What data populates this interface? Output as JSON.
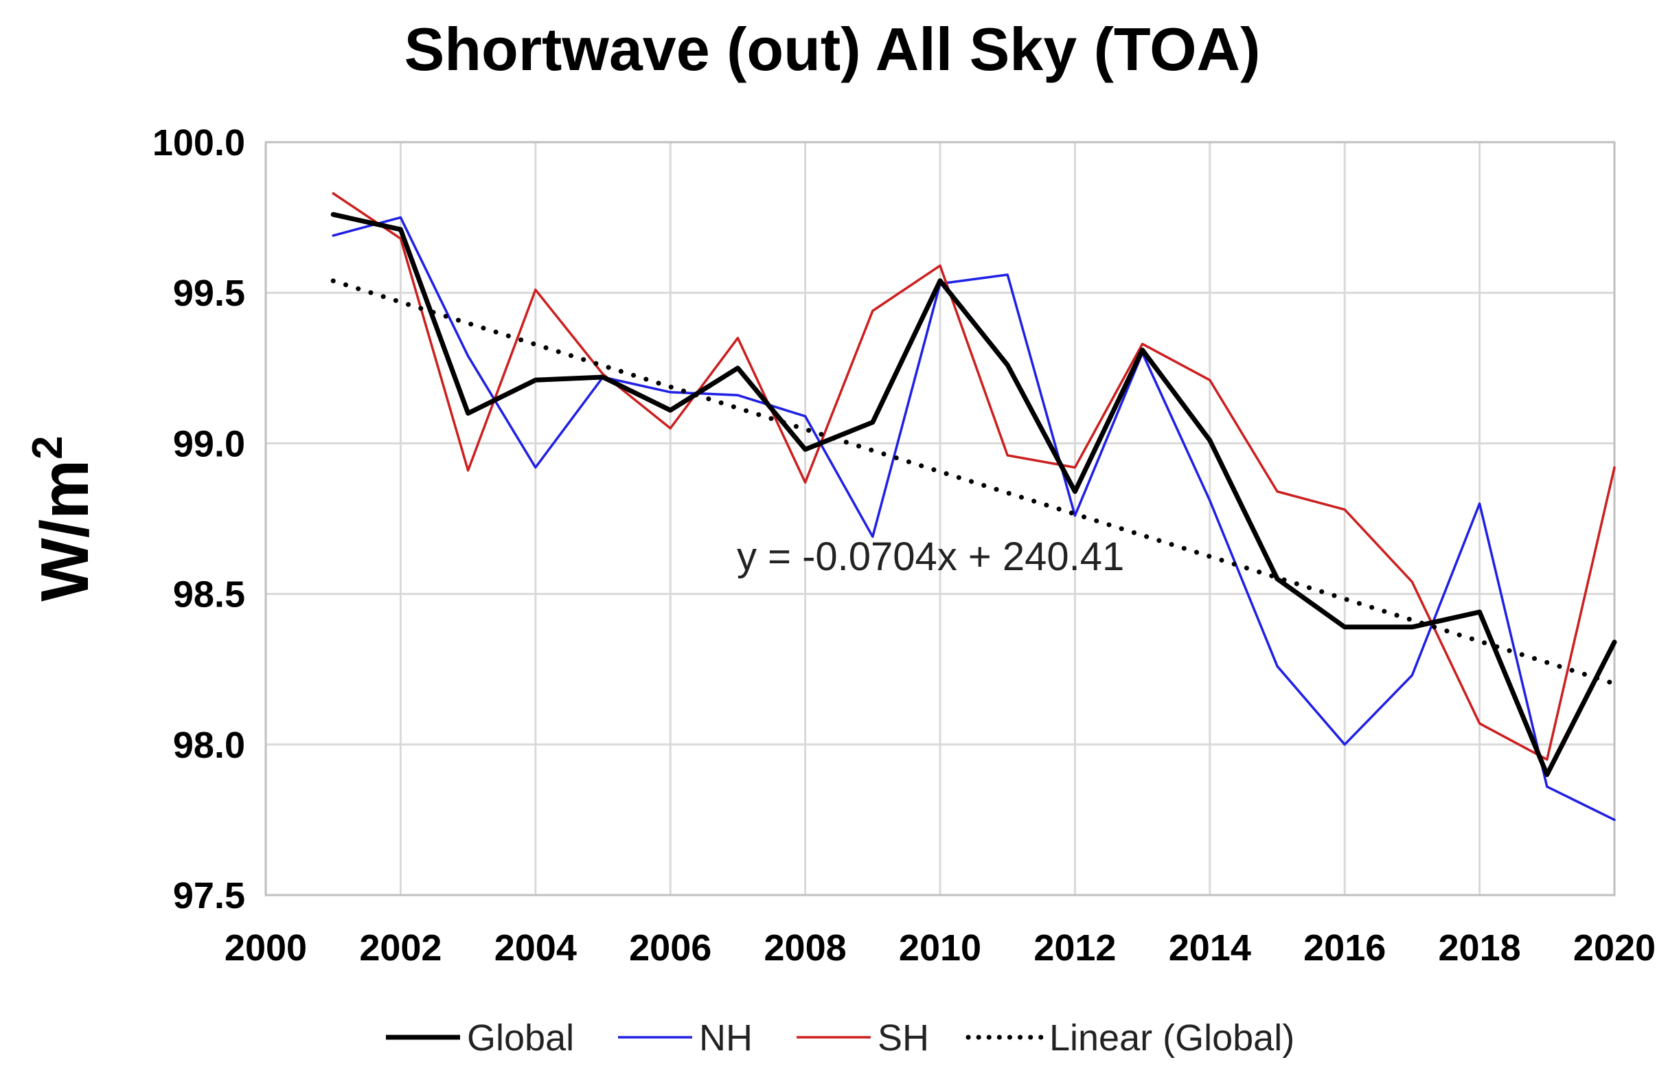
{
  "chart_data": {
    "type": "line",
    "title": "Shortwave (out) All Sky (TOA)",
    "xlabel": "",
    "ylabel": "W/m",
    "ylabel_superscript": "2",
    "xlim": [
      2000,
      2020
    ],
    "ylim": [
      97.5,
      100.0
    ],
    "x_ticks": [
      "2000",
      "2002",
      "2004",
      "2006",
      "2008",
      "2010",
      "2012",
      "2014",
      "2016",
      "2018",
      "2020"
    ],
    "y_ticks": [
      "97.5",
      "98.0",
      "98.5",
      "99.0",
      "99.5",
      "100.0"
    ],
    "grid": true,
    "legend_position": "bottom",
    "x": [
      2001,
      2002,
      2003,
      2004,
      2005,
      2006,
      2007,
      2008,
      2009,
      2010,
      2011,
      2012,
      2013,
      2014,
      2015,
      2016,
      2017,
      2018,
      2019,
      2020
    ],
    "series": [
      {
        "name": "Global",
        "color": "#000000",
        "style": "solid-thick",
        "values": [
          99.76,
          99.71,
          99.1,
          99.21,
          99.22,
          99.11,
          99.25,
          98.98,
          99.07,
          99.54,
          99.26,
          98.84,
          99.31,
          99.01,
          98.55,
          98.39,
          98.39,
          98.44,
          97.9,
          98.34
        ]
      },
      {
        "name": "NH",
        "color": "#1f1fe6",
        "style": "solid",
        "values": [
          99.69,
          99.75,
          99.29,
          98.92,
          99.22,
          99.17,
          99.16,
          99.09,
          98.69,
          99.53,
          99.56,
          98.76,
          99.3,
          98.81,
          98.26,
          98.0,
          98.23,
          98.8,
          97.86,
          97.75
        ]
      },
      {
        "name": "SH",
        "color": "#cc1f1f",
        "style": "solid",
        "values": [
          99.83,
          99.68,
          98.91,
          99.51,
          99.23,
          99.05,
          99.35,
          98.87,
          99.44,
          99.59,
          98.96,
          98.92,
          99.33,
          99.21,
          98.84,
          98.78,
          98.54,
          98.07,
          97.95,
          98.92
        ]
      }
    ],
    "trendline": {
      "name": "Linear (Global)",
      "color": "#000000",
      "style": "dotted",
      "slope": -0.0704,
      "intercept": 240.41,
      "equation_label": "y = -0.0704x + 240.41"
    }
  }
}
